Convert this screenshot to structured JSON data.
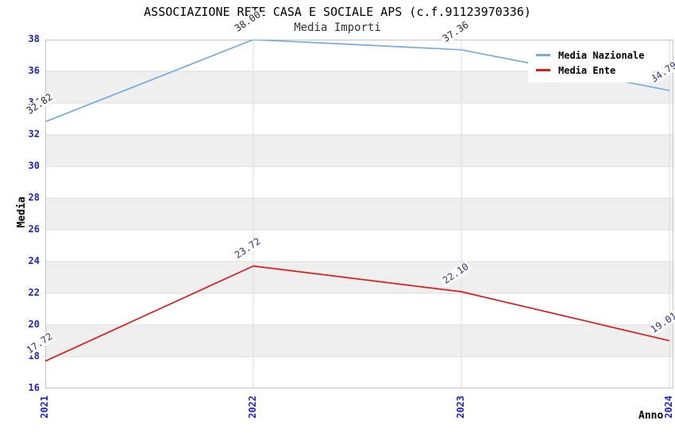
{
  "chart_data": {
    "type": "line",
    "title": "ASSOCIAZIONE RETE CASA E SOCIALE APS (c.f.91123970336)",
    "subtitle": "Media Importi",
    "xlabel": "Anno",
    "ylabel": "Media",
    "categories": [
      "2021",
      "2022",
      "2023",
      "2024"
    ],
    "ylim": [
      16,
      38
    ],
    "ytick_step": 2,
    "yticks": [
      38,
      36,
      34,
      32,
      30,
      28,
      26,
      24,
      22,
      20,
      18,
      16
    ],
    "grid": "horizontal-bands-and-gridlines",
    "legend_position": "top-right",
    "series": [
      {
        "name": "Media Nazionale",
        "color": "#74ACE3",
        "values": [
          32.82,
          38.0,
          37.36,
          34.79
        ],
        "point_labels": [
          "32.82",
          "38.00",
          "37.36",
          "34.79"
        ],
        "point_label_colors": [
          "#2a2a2a",
          "#2a2a2a",
          "#2a2a2a",
          "#33337f"
        ]
      },
      {
        "name": "Media Ente",
        "color": "#E31A1A",
        "values": [
          17.72,
          23.72,
          22.1,
          19.01
        ],
        "point_labels": [
          "17.72",
          "23.72",
          "22.10",
          "19.01"
        ],
        "point_label_colors": [
          "#33337f",
          "#33337f",
          "#33337f",
          "#33337f"
        ]
      }
    ],
    "colors": {
      "tick_label": "#2222CC",
      "band_light": "#FFFFFF",
      "band_dark": "#EFEFEF",
      "grid_line": "#DCDCDC",
      "plot_border": "#C4C4C4",
      "title_color": "#000000",
      "subtitle_color": "#333333"
    }
  }
}
